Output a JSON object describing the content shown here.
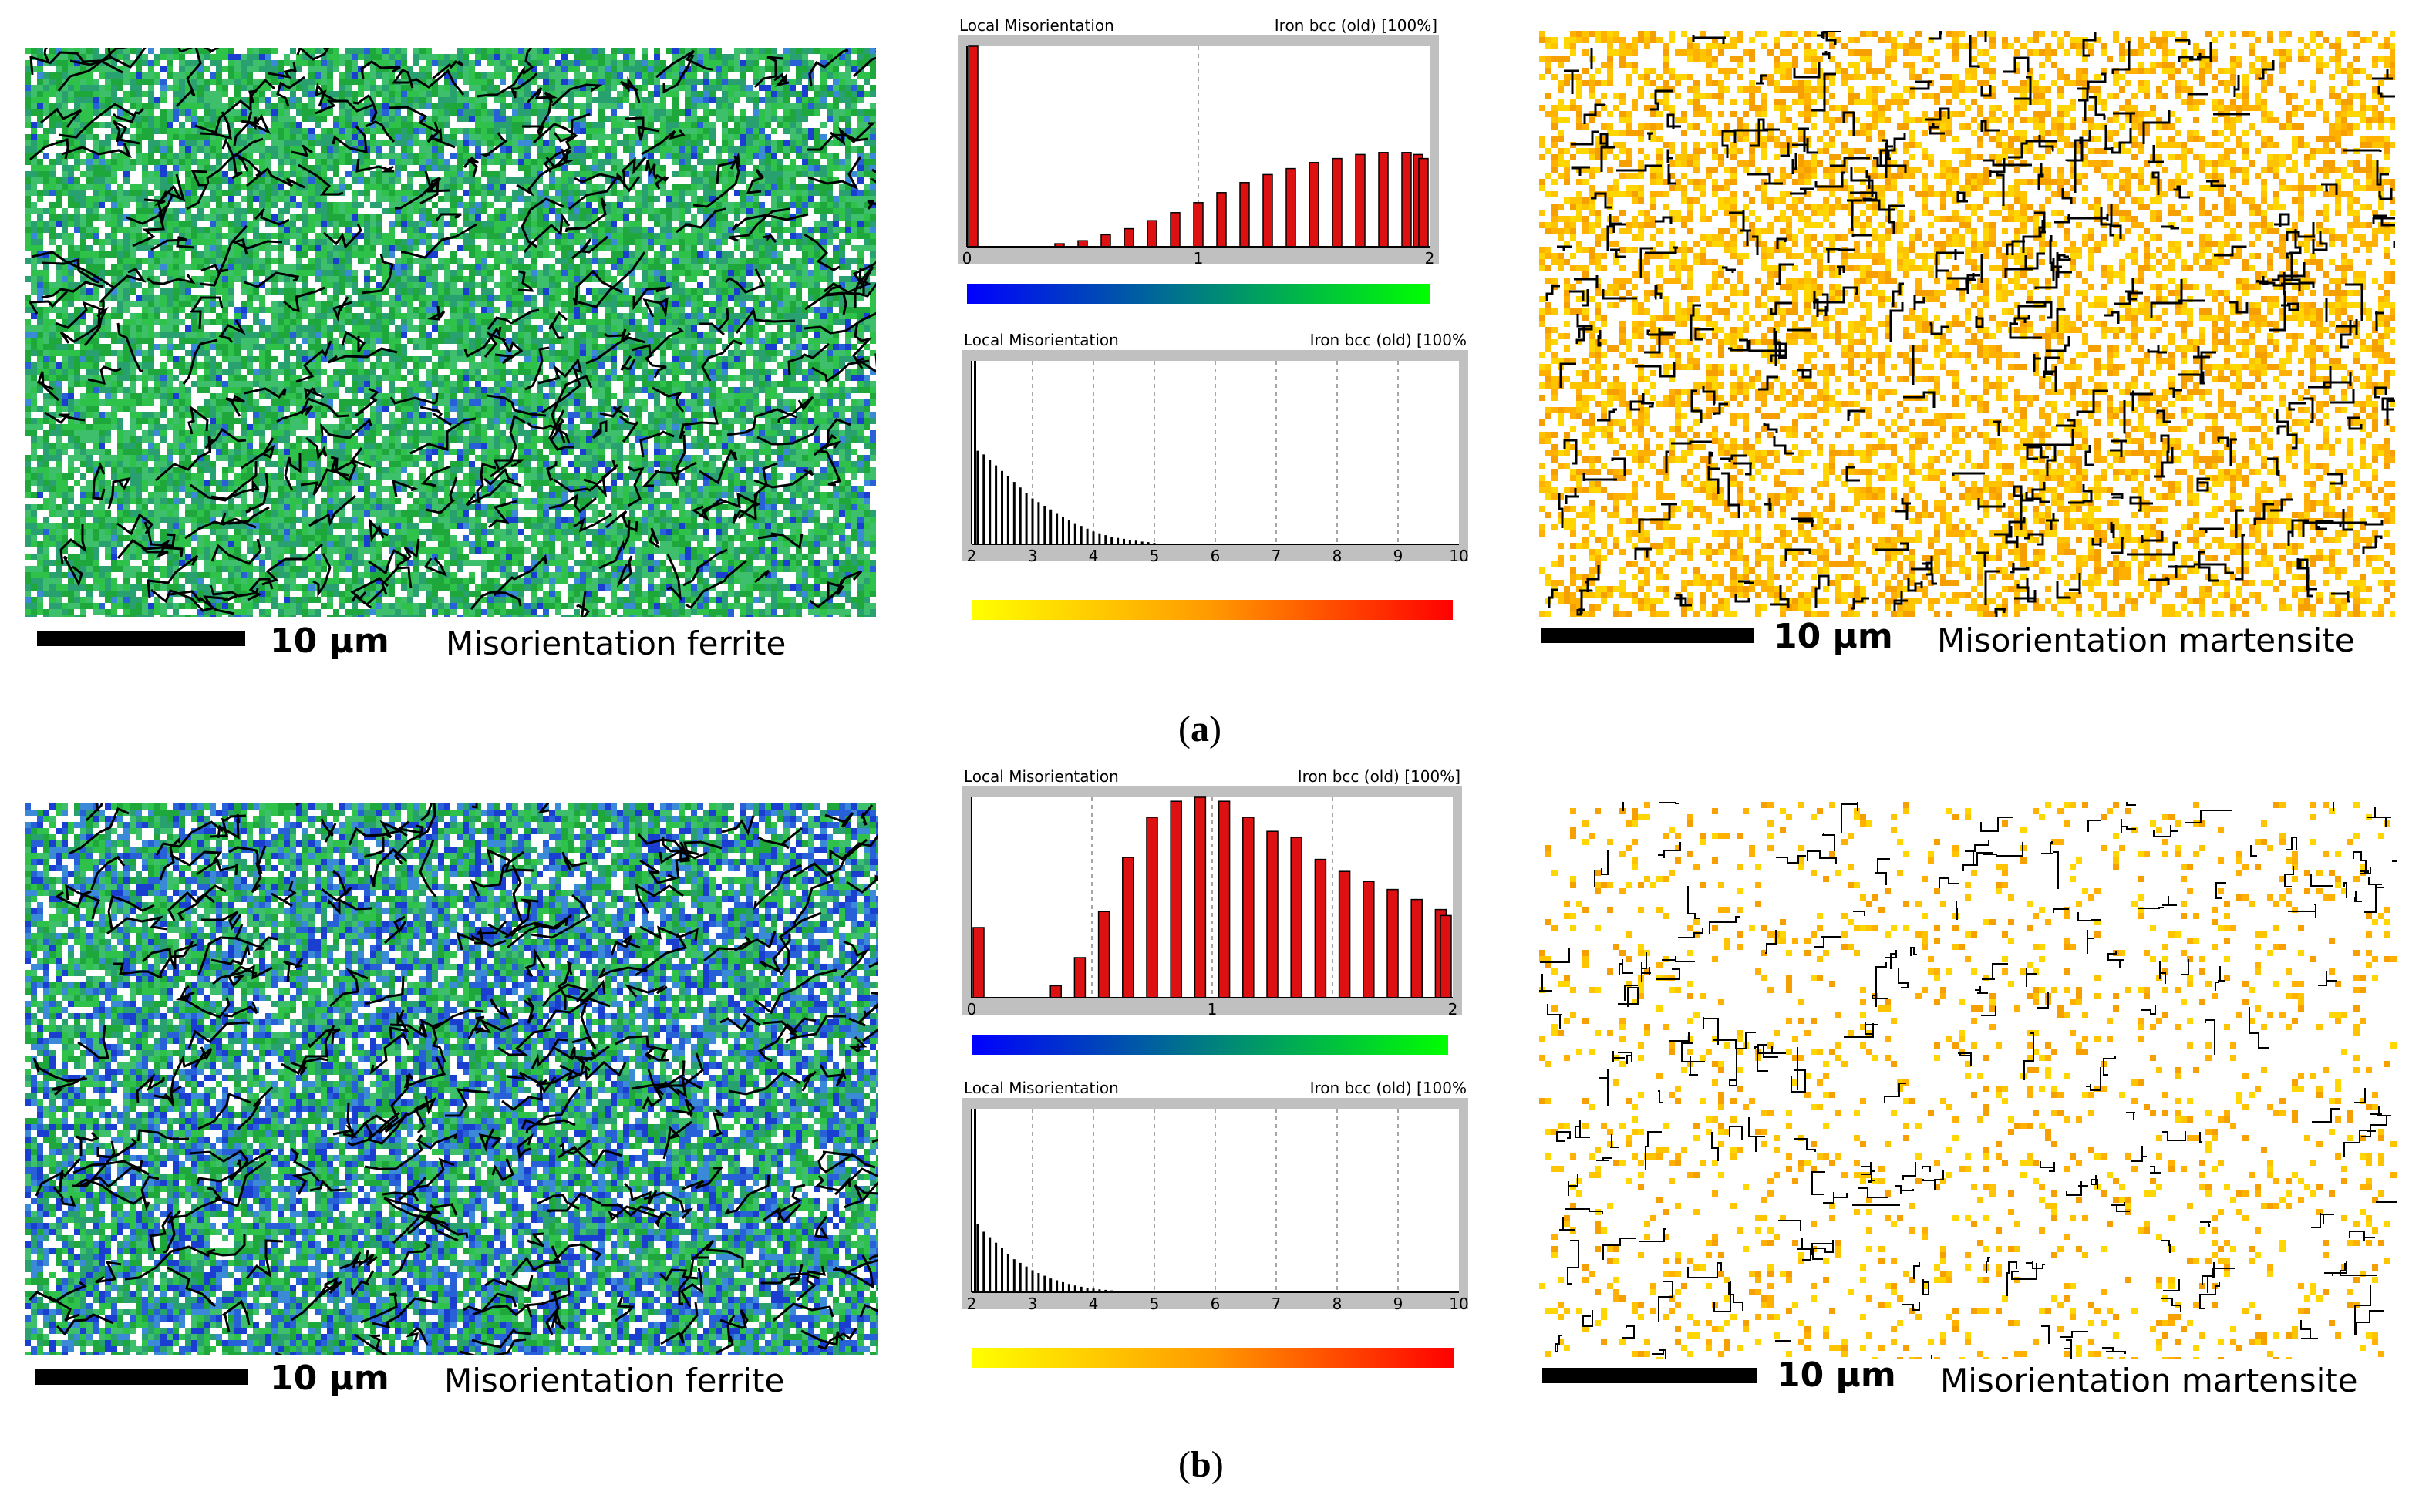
{
  "figure": {
    "panels": [
      {
        "label_open": "(",
        "label_letter": "a",
        "label_close": ")"
      },
      {
        "label_open": "(",
        "label_letter": "b",
        "label_close": ")"
      }
    ]
  },
  "maps": {
    "a_ferrite": {
      "scale": "10 µm",
      "caption": "Misorientation ferrite"
    },
    "a_martensite": {
      "scale": "10 µm",
      "caption": "Misorientation martensite"
    },
    "b_ferrite": {
      "scale": "10 µm",
      "caption": "Misorientation ferrite"
    },
    "b_martensite": {
      "scale": "10 µm",
      "caption": "Misorientation martensite"
    }
  },
  "colors": {
    "bar_red": "#dd1111",
    "ferrite_gradient": [
      "#0000ff",
      "#007f80",
      "#00ff00"
    ],
    "martensite_gradient": [
      "#ffff00",
      "#ff9900",
      "#ff0000"
    ],
    "panel_gray": "#c0c0c0"
  },
  "chart_data": [
    {
      "id": "a_ferrite_hist",
      "type": "bar",
      "title": "Local Misorientation",
      "phase_label": "Iron bcc (old) [100%]",
      "xlim": [
        0,
        2
      ],
      "x_ticks": [
        "0",
        "1",
        "2"
      ],
      "bar_style": "red",
      "x": [
        0.0,
        0.1,
        0.2,
        0.3,
        0.35,
        0.4,
        0.45,
        0.5,
        0.55,
        0.6,
        0.65,
        0.7,
        0.75,
        0.8,
        0.85,
        0.9,
        0.95,
        1.0,
        1.05,
        1.1,
        1.15,
        1.2,
        1.25,
        1.3,
        1.35,
        1.4,
        1.45,
        1.5,
        1.55,
        1.6,
        1.65,
        1.7,
        1.75,
        1.8,
        1.85,
        1.9,
        1.95,
        2.0
      ],
      "values": [
        100,
        0,
        0,
        0,
        0,
        1.5,
        0,
        3,
        0,
        6,
        0,
        9,
        0,
        13,
        0,
        17,
        0,
        22,
        0,
        27,
        0,
        32,
        0,
        36,
        0,
        39,
        0,
        42,
        0,
        44,
        0,
        46,
        0,
        47,
        0,
        47,
        46,
        44
      ],
      "ylim": [
        0,
        100
      ]
    },
    {
      "id": "a_martensite_hist",
      "type": "bar",
      "title": "Local Misorientation",
      "phase_label": "Iron bcc (old) [100%",
      "xlim": [
        2,
        10
      ],
      "x_ticks": [
        "2",
        "3",
        "4",
        "5",
        "6",
        "7",
        "8",
        "9",
        "10"
      ],
      "bar_style": "black",
      "x": [
        2.0,
        2.1,
        2.2,
        2.3,
        2.4,
        2.5,
        2.6,
        2.7,
        2.8,
        2.9,
        3.0,
        3.1,
        3.2,
        3.3,
        3.4,
        3.5,
        3.6,
        3.7,
        3.8,
        3.9,
        4.0,
        4.1,
        4.2,
        4.3,
        4.4,
        4.5,
        4.6,
        4.7,
        4.8,
        4.9,
        5.0
      ],
      "values": [
        100,
        51,
        49,
        46,
        43,
        40,
        37,
        34,
        31,
        28,
        25,
        23,
        21,
        19,
        17,
        15,
        13,
        11.5,
        10,
        8.5,
        7,
        6,
        5,
        4.2,
        3.5,
        3,
        2.5,
        2,
        1.5,
        1.2,
        0.8
      ],
      "ylim": [
        0,
        100
      ]
    },
    {
      "id": "b_ferrite_hist",
      "type": "bar",
      "title": "Local Misorientation",
      "phase_label": "Iron bcc (old) [100%]",
      "xlim": [
        0,
        2
      ],
      "x_ticks": [
        "0",
        "1",
        "2"
      ],
      "bar_style": "red",
      "x": [
        0.0,
        0.25,
        0.35,
        0.45,
        0.55,
        0.65,
        0.75,
        0.85,
        0.95,
        1.05,
        1.15,
        1.25,
        1.35,
        1.45,
        1.55,
        1.65,
        1.75,
        1.85,
        1.95,
        2.0
      ],
      "values": [
        35,
        0,
        6,
        20,
        43,
        70,
        90,
        98,
        100,
        98,
        90,
        83,
        80,
        69,
        63,
        58,
        54,
        49,
        44,
        41
      ],
      "ylim": [
        0,
        100
      ]
    },
    {
      "id": "b_martensite_hist",
      "type": "bar",
      "title": "Local Misorientation",
      "phase_label": "Iron bcc (old) [100%",
      "xlim": [
        2,
        10
      ],
      "x_ticks": [
        "2",
        "3",
        "4",
        "5",
        "6",
        "7",
        "8",
        "9",
        "10"
      ],
      "bar_style": "black",
      "x": [
        2.0,
        2.1,
        2.2,
        2.3,
        2.4,
        2.5,
        2.6,
        2.7,
        2.8,
        2.9,
        3.0,
        3.1,
        3.2,
        3.3,
        3.4,
        3.5,
        3.6,
        3.7,
        3.8,
        3.9,
        4.0,
        4.1,
        4.2,
        4.3,
        4.4,
        4.5,
        4.6,
        4.7,
        4.8
      ],
      "values": [
        100,
        37,
        33,
        30,
        27,
        24,
        21,
        18,
        16,
        14,
        12,
        10.5,
        9,
        7.5,
        6.5,
        5.5,
        4.5,
        3.7,
        3,
        2.5,
        2,
        1.6,
        1.3,
        1,
        0.8,
        0.6,
        0.5,
        0.4,
        0.3
      ],
      "ylim": [
        0,
        100
      ]
    }
  ]
}
